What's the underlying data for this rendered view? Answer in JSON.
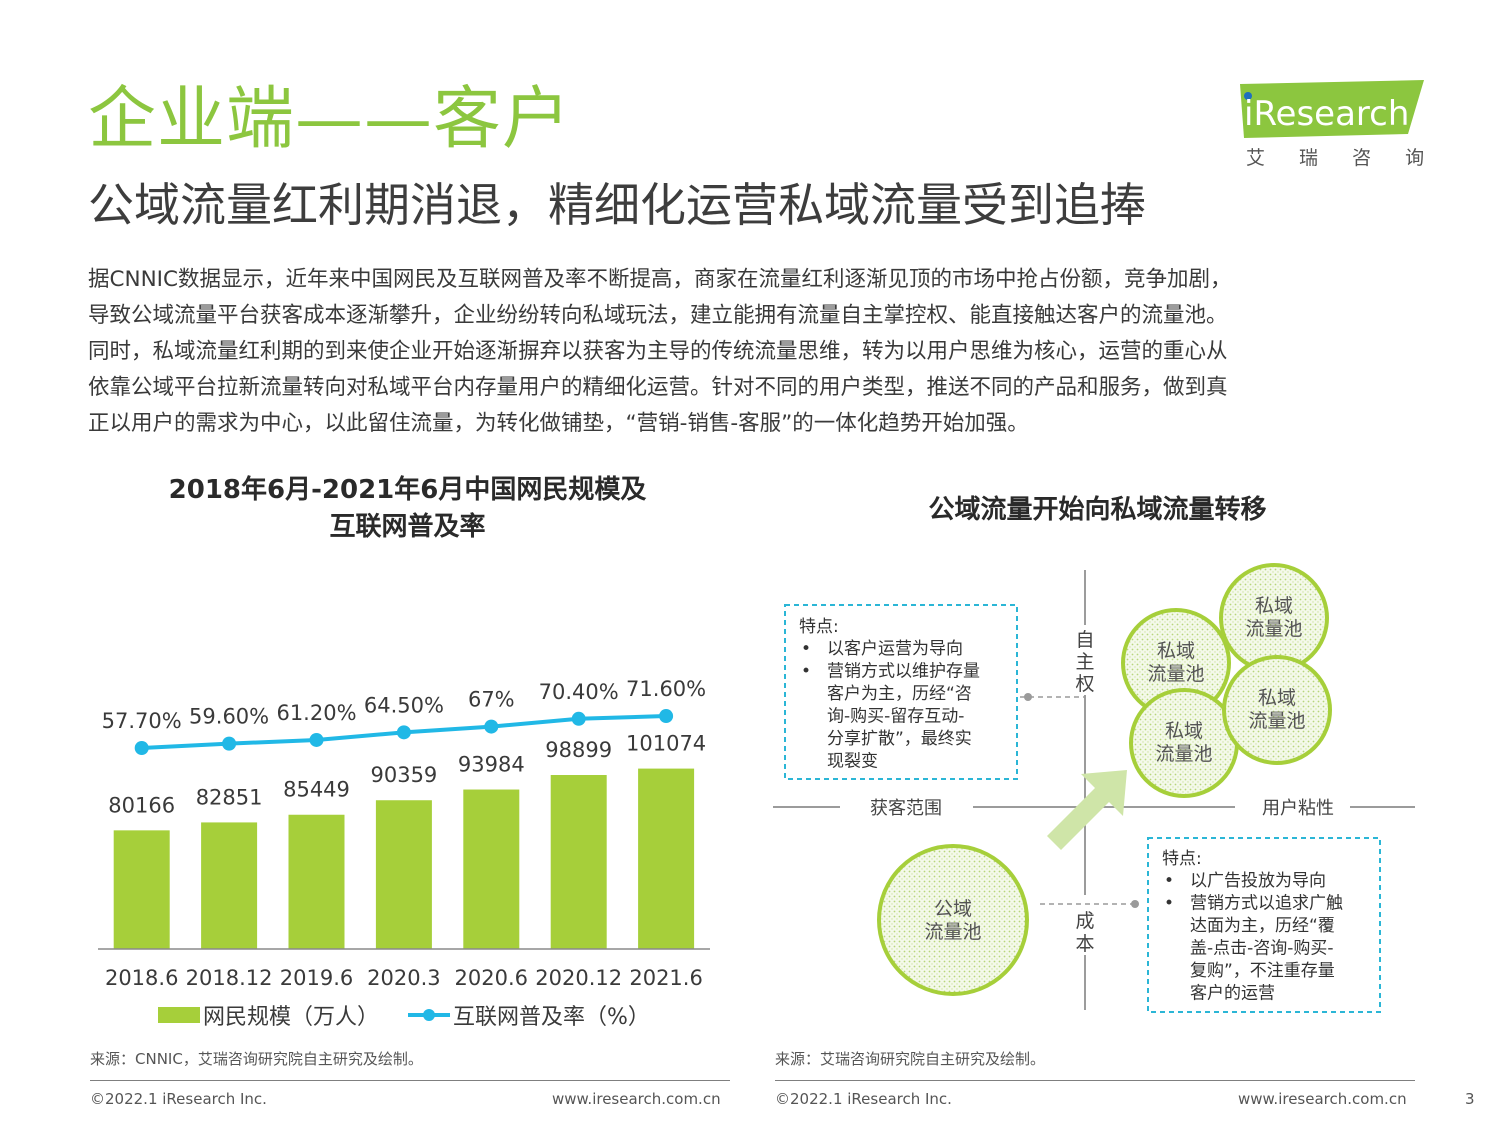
{
  "page": {
    "title": "企业端——客户",
    "subtitle": "公域流量红利期消退，精细化运营私域流量受到追捧",
    "paragraph_lines": [
      "据CNNIC数据显示，近年来中国网民及互联网普及率不断提高，商家在流量红利逐渐见顶的市场中抢占份额，竞争加剧，",
      "导致公域流量平台获客成本逐渐攀升，企业纷纷转向私域玩法，建立能拥有流量自主掌控权、能直接触达客户的流量池。",
      "同时，私域流量红利期的到来使企业开始逐渐摒弃以获客为主导的传统流量思维，转为以用户思维为核心，运营的重心从",
      "依靠公域平台拉新流量转向对私域平台内存量用户的精细化运营。针对不同的用户类型，推送不同的产品和服务，做到真",
      "正以用户的需求为中心，以此留住流量，为转化做铺垫，“营销-销售-客服”的一体化趋势开始加强。"
    ],
    "page_number": "3"
  },
  "logo": {
    "brand": "iResearch",
    "cn": "艾 瑞 咨 询",
    "color": "#8cc63f",
    "dot_color": "#1f6fbf"
  },
  "left_panel": {
    "title_line1": "2018年6月-2021年6月中国网民规模及",
    "title_line2": "互联网普及率",
    "source": "来源：CNNIC，艾瑞咨询研究院自主研究及绘制。",
    "footer_left": "©2022.1 iResearch Inc.",
    "footer_right": "www.iresearch.com.cn"
  },
  "right_panel": {
    "title": "公域流量开始向私域流量转移",
    "source": "来源：艾瑞咨询研究院自主研究及绘制。",
    "footer_left": "©2022.1 iResearch Inc.",
    "footer_right": "www.iresearch.com.cn"
  },
  "chart_data": {
    "type": "bar",
    "categories": [
      "2018.6",
      "2018.12",
      "2019.6",
      "2020.3",
      "2020.6",
      "2020.12",
      "2021.6"
    ],
    "series": [
      {
        "name": "网民规模（万人）",
        "type": "bar",
        "values": [
          80166,
          82851,
          85449,
          90359,
          93984,
          98899,
          101074
        ],
        "labels": [
          "80166",
          "82851",
          "85449",
          "90359",
          "93984",
          "98899",
          "101074"
        ],
        "color": "#a6cf3a"
      },
      {
        "name": "互联网普及率（%）",
        "type": "line",
        "values": [
          57.7,
          59.6,
          61.2,
          64.5,
          67.0,
          70.4,
          71.6
        ],
        "labels": [
          "57.70%",
          "59.60%",
          "61.20%",
          "64.50%",
          "67%",
          "70.40%",
          "71.60%"
        ],
        "color": "#21b8e6"
      }
    ],
    "legend_position": "bottom",
    "grid": false
  },
  "diagram": {
    "axis_top": "自主权",
    "axis_bottom": "成本",
    "axis_left": "获客范围",
    "axis_right": "用户粘性",
    "private_pool_label": "私域流量池",
    "public_pool_label": "公域流量池",
    "private_box": {
      "heading": "特点:",
      "bullets": [
        [
          "以客户运营为导向"
        ],
        [
          "营销方式以维护存量",
          "客户为主，历经“咨",
          "询-购买-留存互动-",
          "分享扩散”，最终实",
          "现裂变"
        ]
      ]
    },
    "public_box": {
      "heading": "特点:",
      "bullets": [
        [
          "以广告投放为导向"
        ],
        [
          "营销方式以追求广触",
          "达面为主，历经“覆",
          "盖-点击-咨询-购买-",
          "复购”，不注重存量",
          "客户的运营"
        ]
      ]
    },
    "colors": {
      "circle_stroke": "#a6cf3a",
      "box_border": "#2bb6d6",
      "arrow": "#cfe5a8"
    }
  }
}
